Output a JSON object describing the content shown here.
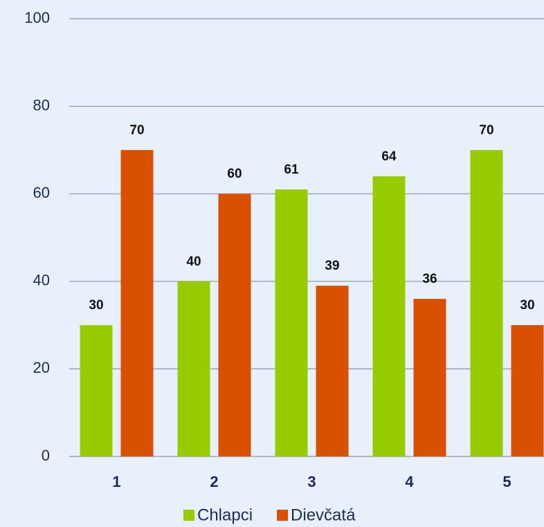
{
  "chart_data": {
    "type": "bar",
    "categories": [
      "1",
      "2",
      "3",
      "4",
      "5"
    ],
    "series": [
      {
        "name": "Chlapci",
        "color": "#99cc00",
        "values": [
          30,
          40,
          61,
          64,
          70
        ]
      },
      {
        "name": "Dievčatá",
        "color": "#d95000",
        "values": [
          70,
          60,
          39,
          36,
          30
        ]
      }
    ],
    "ylim": [
      0,
      100
    ],
    "yticks": [
      0,
      20,
      40,
      60,
      80,
      100
    ],
    "grid": true,
    "legend": "bottom"
  }
}
